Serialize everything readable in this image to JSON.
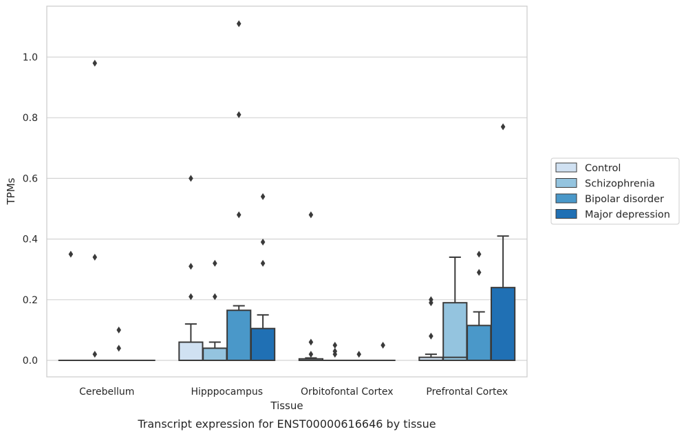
{
  "chart_data": {
    "type": "box",
    "caption": "Transcript expression for ENST00000616646 by tissue",
    "xlabel": "Tissue",
    "ylabel": "TPMs",
    "ylim": [
      -0.055,
      1.17
    ],
    "yticks": [
      0.0,
      0.2,
      0.4,
      0.6,
      0.8,
      1.0
    ],
    "ytick_labels": [
      "0.0",
      "0.2",
      "0.4",
      "0.6",
      "0.8",
      "1.0"
    ],
    "grid": "horizontal",
    "legend_position": "right",
    "categories": [
      "Cerebellum",
      "Hipppocampus",
      "Orbitofontal Cortex",
      "Prefrontal Cortex"
    ],
    "series": [
      {
        "name": "Control",
        "color": "#d0e1f2",
        "boxes": [
          {
            "q1": 0.0,
            "median": 0.0,
            "q3": 0.0,
            "whisker_low": 0.0,
            "whisker_high": 0.0,
            "outliers": [
              0.35
            ]
          },
          {
            "q1": 0.0,
            "median": 0.0,
            "q3": 0.06,
            "whisker_low": 0.0,
            "whisker_high": 0.12,
            "outliers": [
              0.21,
              0.31,
              0.6
            ]
          },
          {
            "q1": 0.0,
            "median": 0.0,
            "q3": 0.005,
            "whisker_low": 0.0,
            "whisker_high": 0.008,
            "outliers": [
              0.02,
              0.06,
              0.48
            ]
          },
          {
            "q1": 0.0,
            "median": 0.0,
            "q3": 0.01,
            "whisker_low": 0.0,
            "whisker_high": 0.02,
            "outliers": [
              0.08,
              0.19,
              0.2
            ]
          }
        ]
      },
      {
        "name": "Schizophrenia",
        "color": "#94c4df",
        "boxes": [
          {
            "q1": 0.0,
            "median": 0.0,
            "q3": 0.0,
            "whisker_low": 0.0,
            "whisker_high": 0.0,
            "outliers": [
              0.02,
              0.34,
              0.98
            ]
          },
          {
            "q1": 0.0,
            "median": 0.0,
            "q3": 0.04,
            "whisker_low": 0.0,
            "whisker_high": 0.06,
            "outliers": [
              0.21,
              0.32
            ]
          },
          {
            "q1": 0.0,
            "median": 0.0,
            "q3": 0.0,
            "whisker_low": 0.0,
            "whisker_high": 0.0,
            "outliers": [
              0.02,
              0.03,
              0.05
            ]
          },
          {
            "q1": 0.0,
            "median": 0.01,
            "q3": 0.19,
            "whisker_low": 0.0,
            "whisker_high": 0.34,
            "outliers": []
          }
        ]
      },
      {
        "name": "Bipolar disorder",
        "color": "#4a98c9",
        "boxes": [
          {
            "q1": 0.0,
            "median": 0.0,
            "q3": 0.0,
            "whisker_low": 0.0,
            "whisker_high": 0.0,
            "outliers": [
              0.04,
              0.1
            ]
          },
          {
            "q1": 0.0,
            "median": 0.0,
            "q3": 0.165,
            "whisker_low": 0.0,
            "whisker_high": 0.18,
            "outliers": [
              0.48,
              0.81,
              1.11
            ]
          },
          {
            "q1": 0.0,
            "median": 0.0,
            "q3": 0.0,
            "whisker_low": 0.0,
            "whisker_high": 0.0,
            "outliers": [
              0.02
            ]
          },
          {
            "q1": 0.0,
            "median": 0.0,
            "q3": 0.115,
            "whisker_low": 0.0,
            "whisker_high": 0.16,
            "outliers": [
              0.29,
              0.35
            ]
          }
        ]
      },
      {
        "name": "Major depression",
        "color": "#2070b4",
        "boxes": [
          {
            "q1": 0.0,
            "median": 0.0,
            "q3": 0.0,
            "whisker_low": 0.0,
            "whisker_high": 0.0,
            "outliers": []
          },
          {
            "q1": 0.0,
            "median": 0.0,
            "q3": 0.105,
            "whisker_low": 0.0,
            "whisker_high": 0.15,
            "outliers": [
              0.32,
              0.39,
              0.54
            ]
          },
          {
            "q1": 0.0,
            "median": 0.0,
            "q3": 0.0,
            "whisker_low": 0.0,
            "whisker_high": 0.0,
            "outliers": [
              0.05
            ]
          },
          {
            "q1": 0.0,
            "median": 0.0,
            "q3": 0.24,
            "whisker_low": 0.0,
            "whisker_high": 0.41,
            "outliers": [
              0.77
            ]
          }
        ]
      }
    ]
  }
}
